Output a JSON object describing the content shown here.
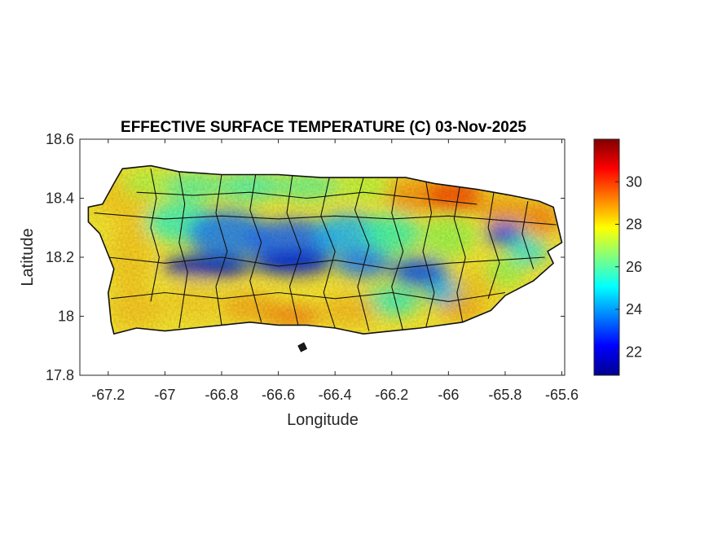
{
  "chart_data": {
    "type": "heatmap",
    "title": "EFFECTIVE SURFACE TEMPERATURE (C) 03-Nov-2025",
    "xlabel": "Longitude",
    "ylabel": "Latitude",
    "xlim": [
      -67.3,
      -65.59
    ],
    "ylim": [
      17.8,
      18.6
    ],
    "xticks": [
      -67.2,
      -67,
      -66.8,
      -66.6,
      -66.4,
      -66.2,
      -66,
      -65.8,
      -65.6
    ],
    "xtick_labels": [
      "-67.2",
      "-67",
      "-66.8",
      "-66.6",
      "-66.4",
      "-66.2",
      "-66",
      "-65.8",
      "-65.6"
    ],
    "yticks": [
      17.8,
      18,
      18.2,
      18.4,
      18.6
    ],
    "ytick_labels": [
      "17.8",
      "18",
      "18.2",
      "18.4",
      "18.6"
    ],
    "colorbar": {
      "colormap": "jet",
      "clim": [
        20.9,
        32.0
      ],
      "ticks": [
        22,
        24,
        26,
        28,
        30
      ],
      "tick_labels": [
        "22",
        "24",
        "26",
        "28",
        "30"
      ]
    },
    "grid": false,
    "region": "Puerto Rico",
    "pattern": "coolest (about 21-23 C) along the central mountain spine near latitude 18.15-18.3 and around -65.8 longitude; warmest (about 29-31 C) on the northeast coast near -66.0 longitude; southern coast about 27-29 C"
  }
}
